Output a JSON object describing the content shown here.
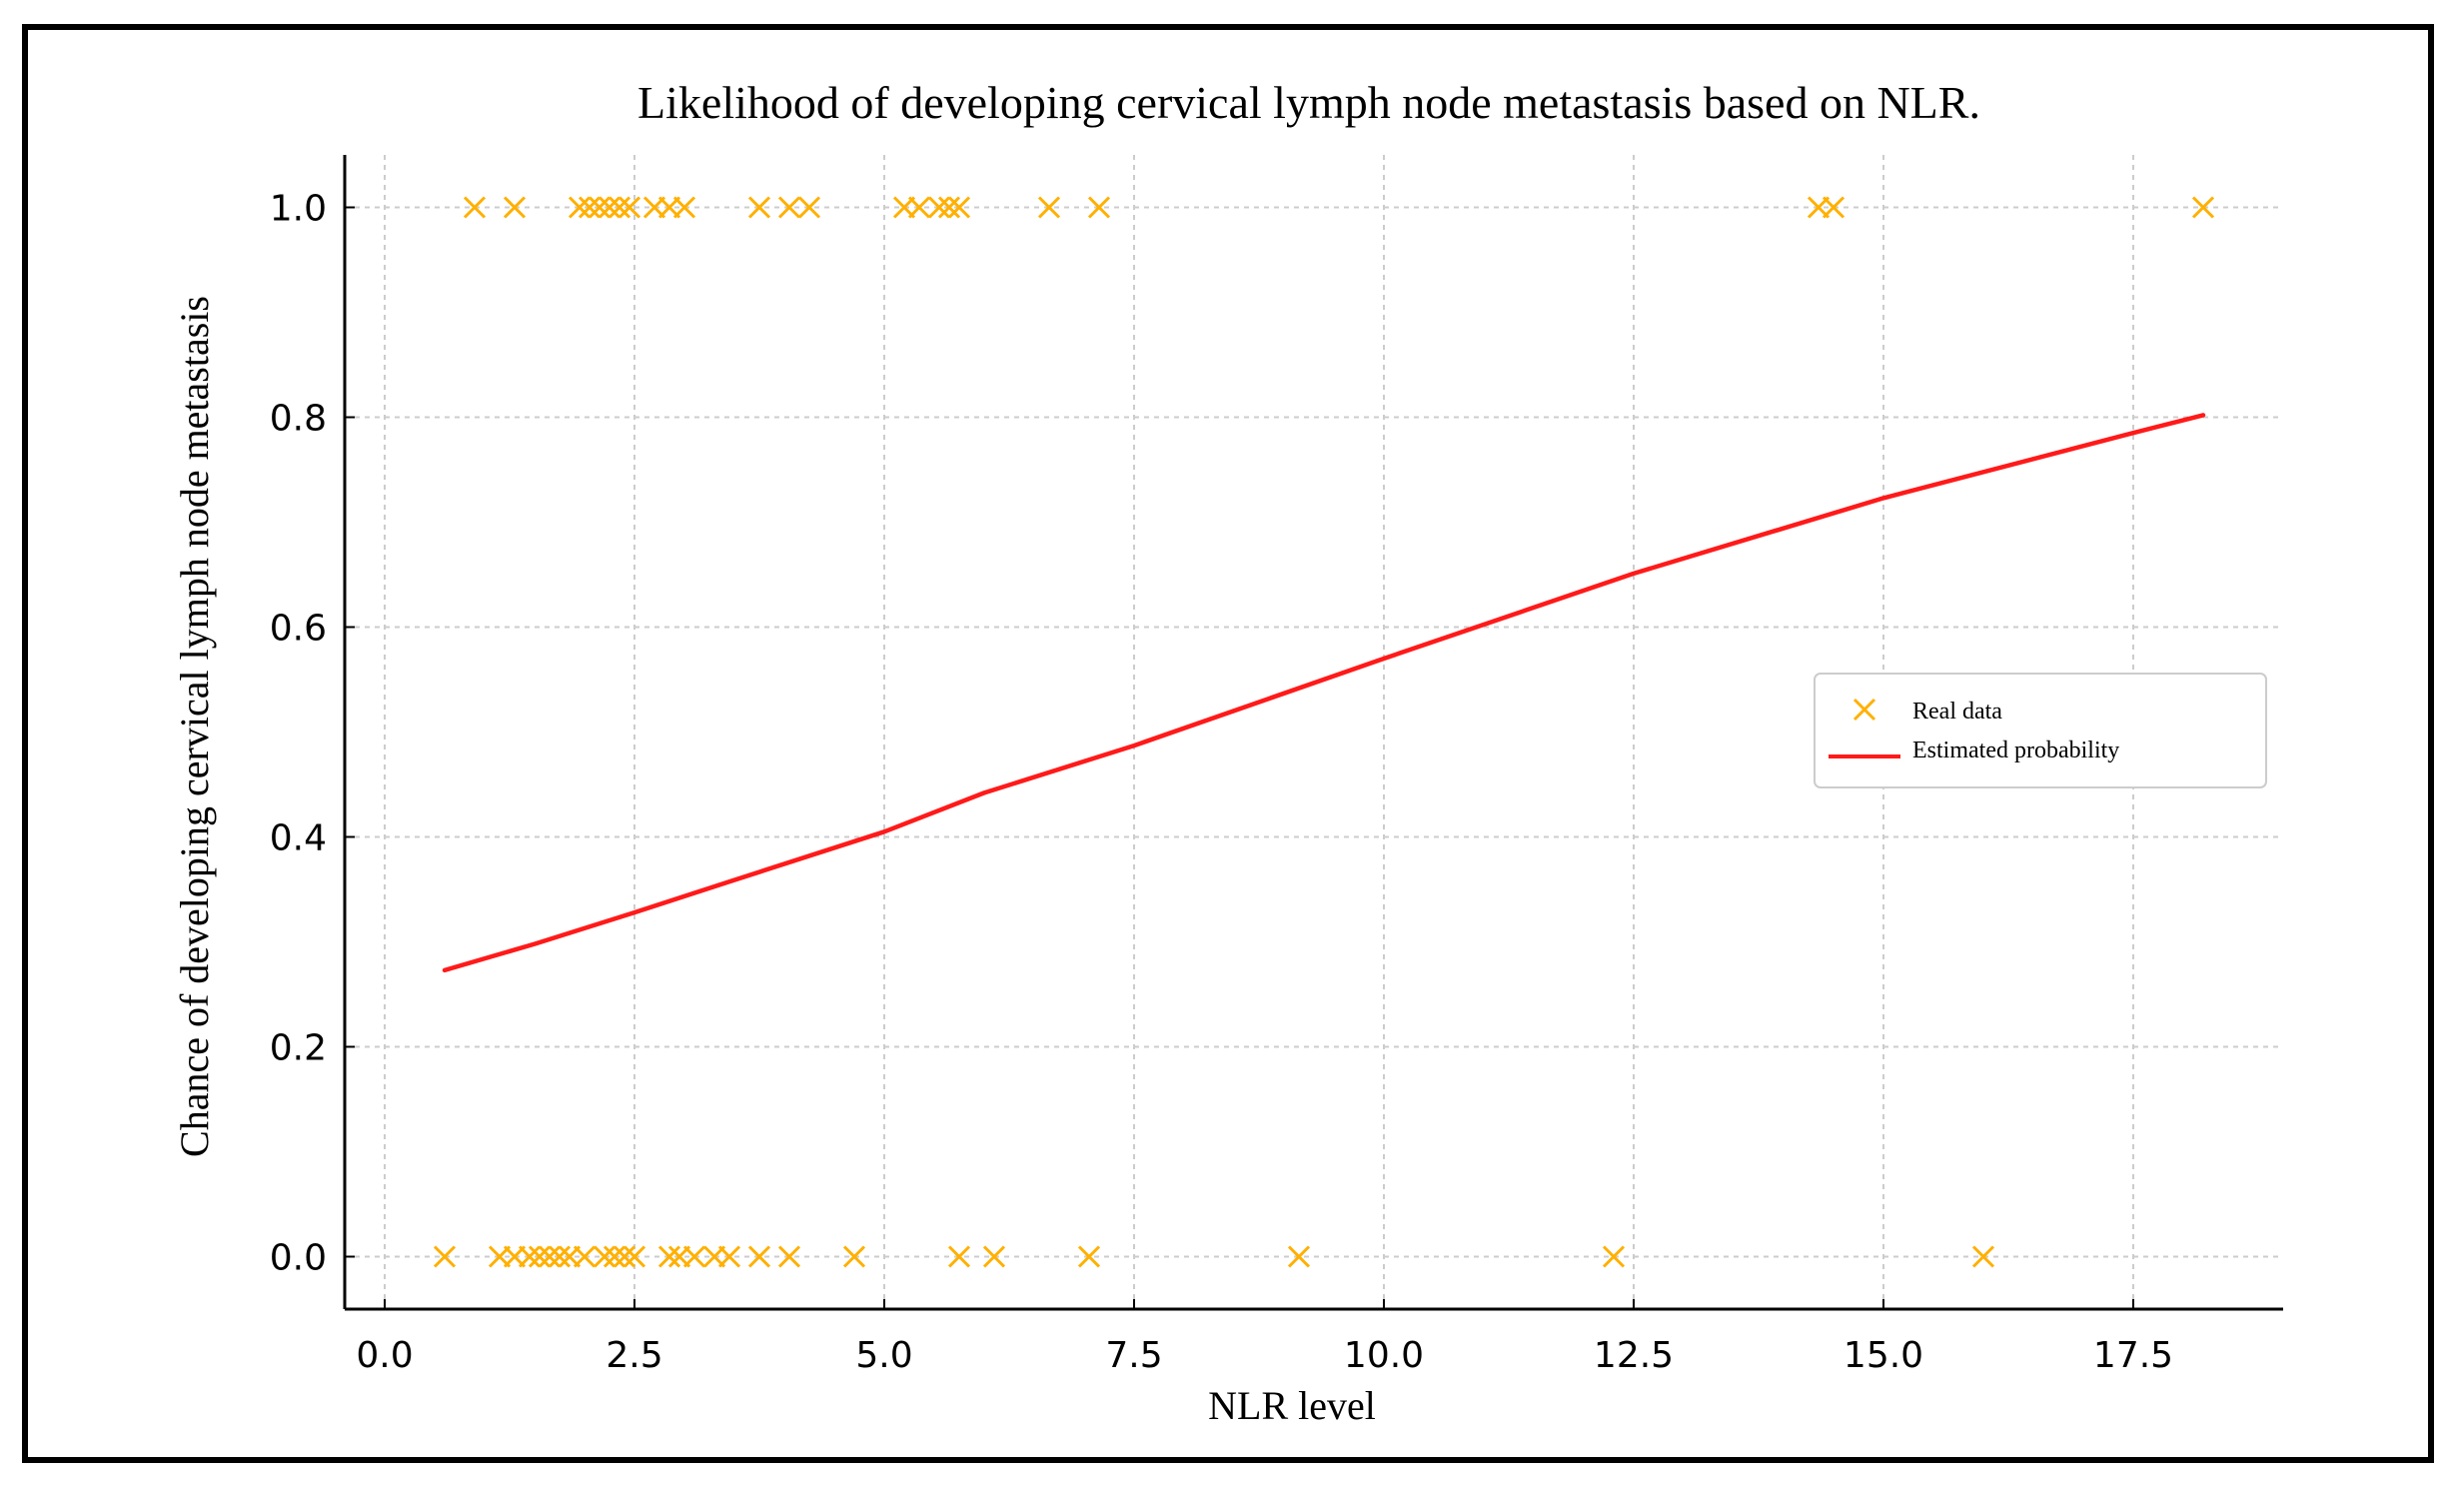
{
  "chart_data": {
    "type": "scatter",
    "title": "Likelihood of developing cervical lymph node metastasis based on NLR.",
    "xlabel": "NLR level",
    "ylabel": "Chance of developing cervical lymph node metastasis",
    "xlim": [
      -0.4,
      19.0
    ],
    "ylim": [
      -0.05,
      1.05
    ],
    "xticks": [
      0.0,
      2.5,
      5.0,
      7.5,
      10.0,
      12.5,
      15.0,
      17.5
    ],
    "xtick_labels": [
      "0.0",
      "2.5",
      "5.0",
      "7.5",
      "10.0",
      "12.5",
      "15.0",
      "17.5"
    ],
    "yticks": [
      0.0,
      0.2,
      0.4,
      0.6,
      0.8,
      1.0
    ],
    "ytick_labels": [
      "0.0",
      "0.2",
      "0.4",
      "0.6",
      "0.8",
      "1.0"
    ],
    "grid": true,
    "legend_position": "center-right",
    "series": [
      {
        "name": "Real data",
        "kind": "scatter",
        "marker": "x",
        "color": "#FFB000",
        "points": [
          {
            "x": 0.9,
            "y": 1
          },
          {
            "x": 1.3,
            "y": 1
          },
          {
            "x": 1.95,
            "y": 1
          },
          {
            "x": 2.05,
            "y": 1
          },
          {
            "x": 2.15,
            "y": 1
          },
          {
            "x": 2.25,
            "y": 1
          },
          {
            "x": 2.35,
            "y": 1
          },
          {
            "x": 2.45,
            "y": 1
          },
          {
            "x": 2.7,
            "y": 1
          },
          {
            "x": 2.85,
            "y": 1
          },
          {
            "x": 3.0,
            "y": 1
          },
          {
            "x": 3.75,
            "y": 1
          },
          {
            "x": 4.05,
            "y": 1
          },
          {
            "x": 4.25,
            "y": 1
          },
          {
            "x": 5.2,
            "y": 1
          },
          {
            "x": 5.35,
            "y": 1
          },
          {
            "x": 5.55,
            "y": 1
          },
          {
            "x": 5.65,
            "y": 1
          },
          {
            "x": 5.75,
            "y": 1
          },
          {
            "x": 6.65,
            "y": 1
          },
          {
            "x": 7.15,
            "y": 1
          },
          {
            "x": 14.35,
            "y": 1
          },
          {
            "x": 14.5,
            "y": 1
          },
          {
            "x": 18.2,
            "y": 1
          },
          {
            "x": 0.6,
            "y": 0
          },
          {
            "x": 1.15,
            "y": 0
          },
          {
            "x": 1.3,
            "y": 0
          },
          {
            "x": 1.45,
            "y": 0
          },
          {
            "x": 1.55,
            "y": 0
          },
          {
            "x": 1.65,
            "y": 0
          },
          {
            "x": 1.75,
            "y": 0
          },
          {
            "x": 1.85,
            "y": 0
          },
          {
            "x": 2.0,
            "y": 0
          },
          {
            "x": 2.2,
            "y": 0
          },
          {
            "x": 2.3,
            "y": 0
          },
          {
            "x": 2.4,
            "y": 0
          },
          {
            "x": 2.5,
            "y": 0
          },
          {
            "x": 2.85,
            "y": 0
          },
          {
            "x": 2.95,
            "y": 0
          },
          {
            "x": 3.1,
            "y": 0
          },
          {
            "x": 3.3,
            "y": 0
          },
          {
            "x": 3.45,
            "y": 0
          },
          {
            "x": 3.75,
            "y": 0
          },
          {
            "x": 4.05,
            "y": 0
          },
          {
            "x": 4.7,
            "y": 0
          },
          {
            "x": 5.75,
            "y": 0
          },
          {
            "x": 6.1,
            "y": 0
          },
          {
            "x": 7.05,
            "y": 0
          },
          {
            "x": 9.15,
            "y": 0
          },
          {
            "x": 12.3,
            "y": 0
          },
          {
            "x": 16.0,
            "y": 0
          }
        ]
      },
      {
        "name": "Estimated probability",
        "kind": "line",
        "color": "#FF1A1A",
        "points": [
          {
            "x": 0.6,
            "y": 0.273
          },
          {
            "x": 1.5,
            "y": 0.298
          },
          {
            "x": 2.5,
            "y": 0.328
          },
          {
            "x": 3.5,
            "y": 0.359
          },
          {
            "x": 5.0,
            "y": 0.405
          },
          {
            "x": 6.0,
            "y": 0.442
          },
          {
            "x": 7.5,
            "y": 0.487
          },
          {
            "x": 10.0,
            "y": 0.57
          },
          {
            "x": 12.5,
            "y": 0.651
          },
          {
            "x": 15.0,
            "y": 0.723
          },
          {
            "x": 17.5,
            "y": 0.785
          },
          {
            "x": 18.2,
            "y": 0.802
          }
        ]
      }
    ]
  }
}
